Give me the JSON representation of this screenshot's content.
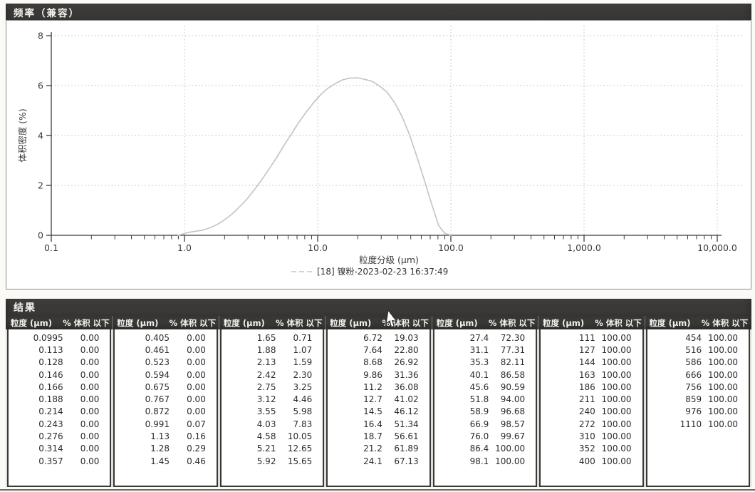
{
  "frequency_panel": {
    "title": "频率（兼容）"
  },
  "results_panel": {
    "title": "结果",
    "size_header": "粒度 (μm)",
    "pct_header": "% 体积 以下"
  },
  "chart_data": {
    "type": "line",
    "title": "频率（兼容）",
    "xlabel": "粒度分级 (μm)",
    "ylabel": "体积密度 (%)",
    "x_scale": "log",
    "xlim": [
      0.1,
      10000
    ],
    "ylim": [
      0,
      8
    ],
    "x_ticks": [
      "0.1",
      "1.0",
      "10.0",
      "100.0",
      "1,000.0",
      "10,000.0"
    ],
    "y_ticks": [
      0,
      2,
      4,
      6,
      8
    ],
    "grid": true,
    "legend_position": "bottom-center",
    "series": [
      {
        "name": "[18] 镍粉-2023-02-23 16:37:49",
        "color": "#c6c6c4",
        "points": [
          [
            0.9,
            0
          ],
          [
            1.06,
            0.11
          ],
          [
            1.2,
            0.16
          ],
          [
            1.36,
            0.2
          ],
          [
            1.55,
            0.3
          ],
          [
            1.76,
            0.43
          ],
          [
            2.0,
            0.62
          ],
          [
            2.27,
            0.85
          ],
          [
            2.58,
            1.13
          ],
          [
            2.93,
            1.44
          ],
          [
            3.33,
            1.81
          ],
          [
            3.78,
            2.21
          ],
          [
            4.3,
            2.65
          ],
          [
            4.9,
            3.1
          ],
          [
            5.55,
            3.58
          ],
          [
            6.3,
            4.03
          ],
          [
            7.17,
            4.5
          ],
          [
            8.15,
            4.92
          ],
          [
            9.26,
            5.3
          ],
          [
            10.5,
            5.63
          ],
          [
            11.9,
            5.89
          ],
          [
            13.6,
            6.08
          ],
          [
            15.4,
            6.23
          ],
          [
            17.5,
            6.3
          ],
          [
            19.9,
            6.31
          ],
          [
            22.6,
            6.25
          ],
          [
            25.7,
            6.17
          ],
          [
            29.2,
            5.98
          ],
          [
            33.2,
            5.73
          ],
          [
            37.6,
            5.33
          ],
          [
            42.8,
            4.78
          ],
          [
            48.6,
            4.07
          ],
          [
            55.2,
            3.2
          ],
          [
            62.8,
            2.26
          ],
          [
            71.3,
            1.31
          ],
          [
            81.0,
            0.39
          ],
          [
            90.0,
            0.08
          ],
          [
            100.0,
            0
          ]
        ]
      }
    ]
  },
  "results_table": {
    "columns": [
      [
        [
          "0.0995",
          "0.00"
        ],
        [
          "0.113",
          "0.00"
        ],
        [
          "0.128",
          "0.00"
        ],
        [
          "0.146",
          "0.00"
        ],
        [
          "0.166",
          "0.00"
        ],
        [
          "0.188",
          "0.00"
        ],
        [
          "0.214",
          "0.00"
        ],
        [
          "0.243",
          "0.00"
        ],
        [
          "0.276",
          "0.00"
        ],
        [
          "0.314",
          "0.00"
        ],
        [
          "0.357",
          "0.00"
        ]
      ],
      [
        [
          "0.405",
          "0.00"
        ],
        [
          "0.461",
          "0.00"
        ],
        [
          "0.523",
          "0.00"
        ],
        [
          "0.594",
          "0.00"
        ],
        [
          "0.675",
          "0.00"
        ],
        [
          "0.767",
          "0.00"
        ],
        [
          "0.872",
          "0.00"
        ],
        [
          "0.991",
          "0.07"
        ],
        [
          "1.13",
          "0.16"
        ],
        [
          "1.28",
          "0.29"
        ],
        [
          "1.45",
          "0.46"
        ]
      ],
      [
        [
          "1.65",
          "0.71"
        ],
        [
          "1.88",
          "1.07"
        ],
        [
          "2.13",
          "1.59"
        ],
        [
          "2.42",
          "2.30"
        ],
        [
          "2.75",
          "3.25"
        ],
        [
          "3.12",
          "4.46"
        ],
        [
          "3.55",
          "5.98"
        ],
        [
          "4.03",
          "7.83"
        ],
        [
          "4.58",
          "10.05"
        ],
        [
          "5.21",
          "12.65"
        ],
        [
          "5.92",
          "15.65"
        ]
      ],
      [
        [
          "6.72",
          "19.03"
        ],
        [
          "7.64",
          "22.80"
        ],
        [
          "8.68",
          "26.92"
        ],
        [
          "9.86",
          "31.36"
        ],
        [
          "11.2",
          "36.08"
        ],
        [
          "12.7",
          "41.02"
        ],
        [
          "14.5",
          "46.12"
        ],
        [
          "16.4",
          "51.34"
        ],
        [
          "18.7",
          "56.61"
        ],
        [
          "21.2",
          "61.89"
        ],
        [
          "24.1",
          "67.13"
        ]
      ],
      [
        [
          "27.4",
          "72.30"
        ],
        [
          "31.1",
          "77.31"
        ],
        [
          "35.3",
          "82.11"
        ],
        [
          "40.1",
          "86.58"
        ],
        [
          "45.6",
          "90.59"
        ],
        [
          "51.8",
          "94.00"
        ],
        [
          "58.9",
          "96.68"
        ],
        [
          "66.9",
          "98.57"
        ],
        [
          "76.0",
          "99.67"
        ],
        [
          "86.4",
          "100.00"
        ],
        [
          "98.1",
          "100.00"
        ]
      ],
      [
        [
          "111",
          "100.00"
        ],
        [
          "127",
          "100.00"
        ],
        [
          "144",
          "100.00"
        ],
        [
          "163",
          "100.00"
        ],
        [
          "186",
          "100.00"
        ],
        [
          "211",
          "100.00"
        ],
        [
          "240",
          "100.00"
        ],
        [
          "272",
          "100.00"
        ],
        [
          "310",
          "100.00"
        ],
        [
          "352",
          "100.00"
        ],
        [
          "400",
          "100.00"
        ]
      ],
      [
        [
          "454",
          "100.00"
        ],
        [
          "516",
          "100.00"
        ],
        [
          "586",
          "100.00"
        ],
        [
          "666",
          "100.00"
        ],
        [
          "756",
          "100.00"
        ],
        [
          "859",
          "100.00"
        ],
        [
          "976",
          "100.00"
        ],
        [
          "1110",
          "100.00"
        ]
      ]
    ]
  }
}
